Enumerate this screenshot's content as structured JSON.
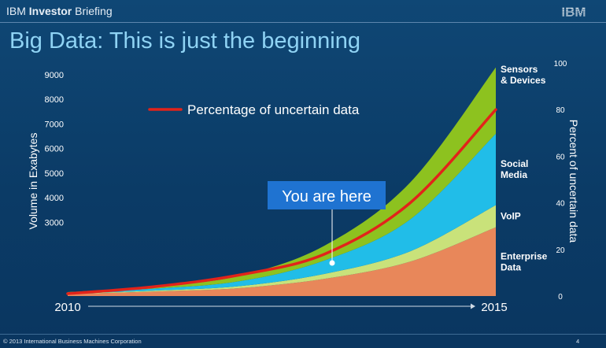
{
  "header": {
    "brand_part1": "IBM ",
    "brand_part2": "Investor",
    "brand_part3": " Briefing",
    "logo_text": "IBM"
  },
  "page_title": "Big Data: This is just the beginning",
  "footer": {
    "copyright": "© 2013 International Business Machines Corporation",
    "page_number": "4"
  },
  "colors": {
    "background": "#0d3f6a",
    "title": "#8fd3f4",
    "enterprise": "#e8875a",
    "voip": "#c9e27a",
    "social": "#21bde8",
    "sensors": "#8dc21f",
    "uncertain_line": "#e2231a",
    "callout": "#1f73d1"
  },
  "chart_data": {
    "type": "area",
    "stacked": true,
    "x_start_label": "2010",
    "x_end_label": "2015",
    "x": [
      2010,
      2011,
      2012,
      2013,
      2014,
      2015
    ],
    "ylabel": "Volume in Exabytes",
    "y_ticks": [
      "9000",
      "8000",
      "7000",
      "6000",
      "5000",
      "4000",
      "3000"
    ],
    "y2label": "Percent of uncertain data",
    "y2_ticks": [
      "100",
      "80",
      "60",
      "40",
      "20",
      "0"
    ],
    "ylim": [
      0,
      9000
    ],
    "y2lim": [
      0,
      100
    ],
    "series": [
      {
        "name": "Enterprise Data",
        "label_lines": [
          "Enterprise",
          "Data"
        ],
        "values": [
          80,
          180,
          320,
          700,
          1400,
          2800
        ]
      },
      {
        "name": "VoIP",
        "label_lines": [
          "VoIP"
        ],
        "values": [
          20,
          40,
          80,
          200,
          420,
          900
        ]
      },
      {
        "name": "Social Media",
        "label_lines": [
          "Social",
          "Media"
        ],
        "values": [
          30,
          80,
          200,
          550,
          1300,
          2900
        ]
      },
      {
        "name": "Sensors & Devices",
        "label_lines": [
          "Sensors",
          "& Devices"
        ],
        "values": [
          30,
          80,
          220,
          600,
          1500,
          2700
        ]
      }
    ],
    "line_series": {
      "name": "Percentage of uncertain data",
      "axis": "y2",
      "values": [
        1,
        4,
        9,
        18,
        40,
        80
      ]
    },
    "legend": {
      "text": "Percentage of uncertain data",
      "placement": "top-left"
    },
    "annotation": {
      "text": "You are here",
      "x": 2012.6
    }
  }
}
